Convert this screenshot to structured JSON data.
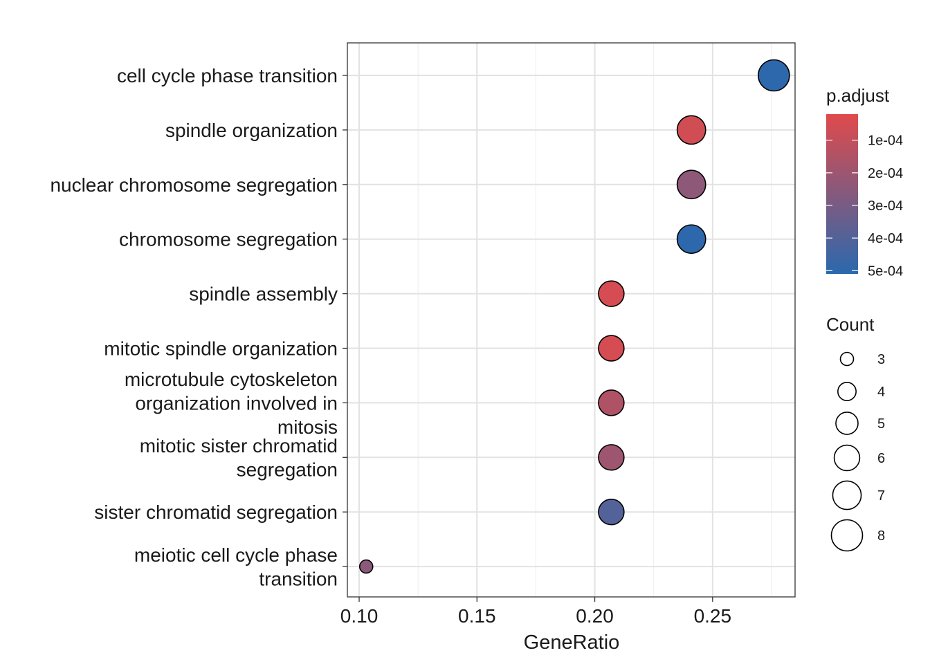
{
  "chart_data": {
    "type": "scatter",
    "title": "",
    "xlabel": "GeneRatio",
    "ylabel": "",
    "xlim": [
      0.095,
      0.285
    ],
    "x_ticks": [
      "0.10",
      "0.15",
      "0.20",
      "0.25"
    ],
    "x_tick_values": [
      0.1,
      0.15,
      0.2,
      0.25
    ],
    "grid": true,
    "categories": [
      "cell cycle phase transition",
      "spindle organization",
      "nuclear chromosome segregation",
      "chromosome segregation",
      "spindle assembly",
      "mitotic spindle organization",
      "microtubule cytoskeleton organization involved in mitosis",
      "mitotic sister chromatid segregation",
      "sister chromatid segregation",
      "meiotic cell cycle phase transition"
    ],
    "category_lines": [
      [
        "cell cycle phase transition"
      ],
      [
        "spindle organization"
      ],
      [
        "nuclear chromosome segregation"
      ],
      [
        "chromosome segregation"
      ],
      [
        "spindle assembly"
      ],
      [
        "mitotic spindle organization"
      ],
      [
        "microtubule cytoskeleton",
        "organization involved in",
        "mitosis"
      ],
      [
        "mitotic sister chromatid",
        "segregation"
      ],
      [
        "sister chromatid segregation"
      ],
      [
        "meiotic cell cycle phase",
        "transition"
      ]
    ],
    "points": [
      {
        "category": "cell cycle phase transition",
        "gene_ratio": 0.276,
        "count": 8,
        "p_adjust": 0.0005
      },
      {
        "category": "spindle organization",
        "gene_ratio": 0.241,
        "count": 7,
        "p_adjust": 6e-05
      },
      {
        "category": "nuclear chromosome segregation",
        "gene_ratio": 0.241,
        "count": 7,
        "p_adjust": 0.00024
      },
      {
        "category": "chromosome segregation",
        "gene_ratio": 0.241,
        "count": 7,
        "p_adjust": 0.0005
      },
      {
        "category": "spindle assembly",
        "gene_ratio": 0.207,
        "count": 6,
        "p_adjust": 5e-05
      },
      {
        "category": "mitotic spindle organization",
        "gene_ratio": 0.207,
        "count": 6,
        "p_adjust": 5e-05
      },
      {
        "category": "microtubule cytoskeleton organization involved in mitosis",
        "gene_ratio": 0.207,
        "count": 6,
        "p_adjust": 0.00015
      },
      {
        "category": "mitotic sister chromatid segregation",
        "gene_ratio": 0.207,
        "count": 6,
        "p_adjust": 0.0002
      },
      {
        "category": "sister chromatid segregation",
        "gene_ratio": 0.207,
        "count": 6,
        "p_adjust": 0.0004
      },
      {
        "category": "meiotic cell cycle phase transition",
        "gene_ratio": 0.103,
        "count": 3,
        "p_adjust": 0.00025
      }
    ],
    "color_legend": {
      "title": "p.adjust",
      "min_value": 2e-05,
      "max_value": 0.00051,
      "ticks": [
        {
          "label": "1e-04",
          "value": 0.0001
        },
        {
          "label": "2e-04",
          "value": 0.0002
        },
        {
          "label": "3e-04",
          "value": 0.0003
        },
        {
          "label": "4e-04",
          "value": 0.0004
        },
        {
          "label": "5e-04",
          "value": 0.0005
        }
      ],
      "low_color": "#e04a4c",
      "high_color": "#2a69ae"
    },
    "size_legend": {
      "title": "Count",
      "entries": [
        {
          "label": "3",
          "value": 3
        },
        {
          "label": "4",
          "value": 4
        },
        {
          "label": "5",
          "value": 5
        },
        {
          "label": "6",
          "value": 6
        },
        {
          "label": "7",
          "value": 7
        },
        {
          "label": "8",
          "value": 8
        }
      ]
    }
  }
}
